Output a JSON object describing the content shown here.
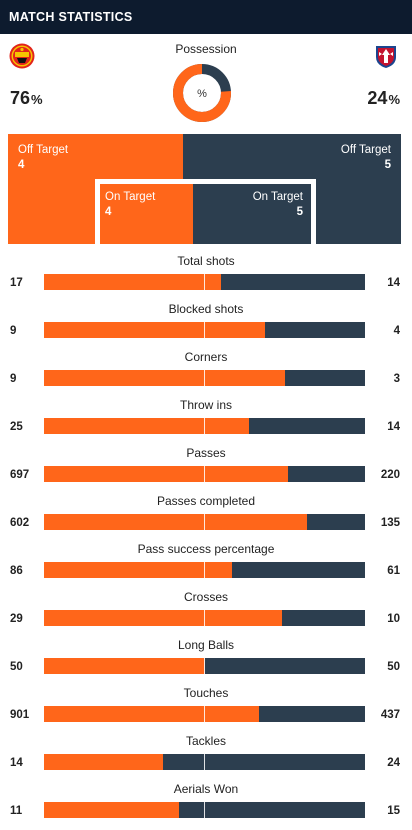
{
  "header": {
    "title": "MATCH STATISTICS"
  },
  "colors": {
    "home": "#ff661a",
    "away": "#2c3e4f",
    "header_bg": "#0d1b2e"
  },
  "teams": {
    "home": {
      "crest_icon": "manchester-united-crest-icon"
    },
    "away": {
      "crest_icon": "crystal-palace-crest-icon"
    }
  },
  "possession": {
    "label": "Possession",
    "center_symbol": "%",
    "home_value": "76",
    "away_value": "24",
    "percent_sign": "%"
  },
  "shots": {
    "off_target_label": "Off Target",
    "on_target_label": "On Target",
    "home_off": "4",
    "away_off": "5",
    "home_on": "4",
    "away_on": "5"
  },
  "stats": [
    {
      "label": "Total shots",
      "home": "17",
      "away": "14",
      "home_fraction": 0.55
    },
    {
      "label": "Blocked shots",
      "home": "9",
      "away": "4",
      "home_fraction": 0.69
    },
    {
      "label": "Corners",
      "home": "9",
      "away": "3",
      "home_fraction": 0.75
    },
    {
      "label": "Throw ins",
      "home": "25",
      "away": "14",
      "home_fraction": 0.64
    },
    {
      "label": "Passes",
      "home": "697",
      "away": "220",
      "home_fraction": 0.76
    },
    {
      "label": "Passes completed",
      "home": "602",
      "away": "135",
      "home_fraction": 0.82
    },
    {
      "label": "Pass success percentage",
      "home": "86",
      "away": "61",
      "home_fraction": 0.585
    },
    {
      "label": "Crosses",
      "home": "29",
      "away": "10",
      "home_fraction": 0.74
    },
    {
      "label": "Long Balls",
      "home": "50",
      "away": "50",
      "home_fraction": 0.5
    },
    {
      "label": "Touches",
      "home": "901",
      "away": "437",
      "home_fraction": 0.67
    },
    {
      "label": "Tackles",
      "home": "14",
      "away": "24",
      "home_fraction": 0.37
    },
    {
      "label": "Aerials Won",
      "home": "11",
      "away": "15",
      "home_fraction": 0.42
    }
  ]
}
